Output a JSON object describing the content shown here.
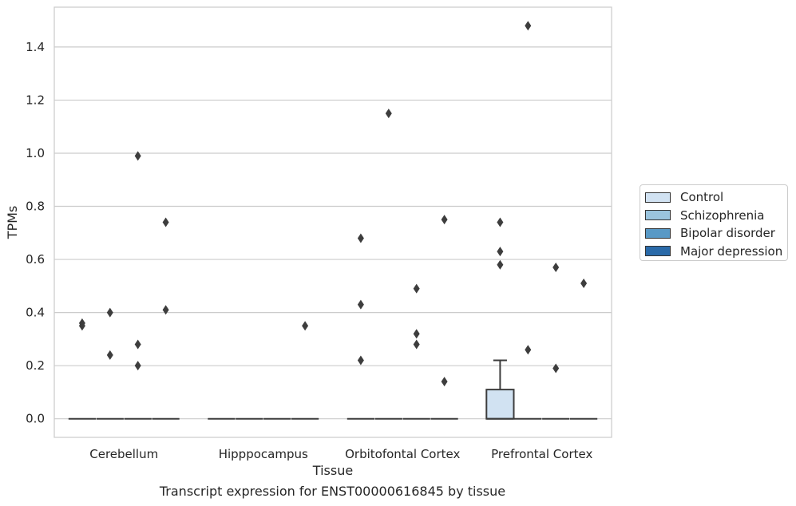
{
  "caption": "Transcript expression for ENST00000616845 by tissue",
  "chart_data": {
    "type": "boxplot",
    "xlabel": "Tissue",
    "ylabel": "TPMs",
    "ylim": [
      -0.07,
      1.55
    ],
    "yticks": [
      0.0,
      0.2,
      0.4,
      0.6,
      0.8,
      1.0,
      1.2,
      1.4
    ],
    "ytick_labels": [
      "0.0",
      "0.2",
      "0.4",
      "0.6",
      "0.8",
      "1.0",
      "1.2",
      "1.4"
    ],
    "grid": true,
    "legend_position": "right",
    "categories": [
      "Cerebellum",
      "Hipppocampus",
      "Orbitofontal Cortex",
      "Prefrontal Cortex"
    ],
    "series": [
      {
        "name": "Control",
        "color": "#d1e2f2",
        "boxes": [
          {
            "q1": 0,
            "median": 0,
            "q3": 0,
            "whisker_low": 0,
            "whisker_high": 0,
            "outliers": [
              0.36,
              0.35
            ]
          },
          {
            "q1": 0,
            "median": 0,
            "q3": 0,
            "whisker_low": 0,
            "whisker_high": 0,
            "outliers": []
          },
          {
            "q1": 0,
            "median": 0,
            "q3": 0,
            "whisker_low": 0,
            "whisker_high": 0,
            "outliers": [
              0.68,
              0.43,
              0.22
            ]
          },
          {
            "q1": 0,
            "median": 0,
            "q3": 0.11,
            "whisker_low": 0,
            "whisker_high": 0.22,
            "outliers": [
              0.74,
              0.63,
              0.58
            ]
          }
        ]
      },
      {
        "name": "Schizophrenia",
        "color": "#9ac4de",
        "boxes": [
          {
            "q1": 0,
            "median": 0,
            "q3": 0,
            "whisker_low": 0,
            "whisker_high": 0,
            "outliers": [
              0.4,
              0.24
            ]
          },
          {
            "q1": 0,
            "median": 0,
            "q3": 0,
            "whisker_low": 0,
            "whisker_high": 0,
            "outliers": []
          },
          {
            "q1": 0,
            "median": 0,
            "q3": 0,
            "whisker_low": 0,
            "whisker_high": 0,
            "outliers": [
              1.15
            ]
          },
          {
            "q1": 0,
            "median": 0,
            "q3": 0,
            "whisker_low": 0,
            "whisker_high": 0,
            "outliers": [
              1.48,
              0.26
            ]
          }
        ]
      },
      {
        "name": "Bipolar disorder",
        "color": "#5899c6",
        "boxes": [
          {
            "q1": 0,
            "median": 0,
            "q3": 0,
            "whisker_low": 0,
            "whisker_high": 0,
            "outliers": [
              0.99,
              0.28,
              0.2
            ]
          },
          {
            "q1": 0,
            "median": 0,
            "q3": 0,
            "whisker_low": 0,
            "whisker_high": 0,
            "outliers": []
          },
          {
            "q1": 0,
            "median": 0,
            "q3": 0,
            "whisker_low": 0,
            "whisker_high": 0,
            "outliers": [
              0.49,
              0.32,
              0.28
            ]
          },
          {
            "q1": 0,
            "median": 0,
            "q3": 0,
            "whisker_low": 0,
            "whisker_high": 0,
            "outliers": [
              0.57,
              0.19
            ]
          }
        ]
      },
      {
        "name": "Major depression",
        "color": "#2a6aa9",
        "boxes": [
          {
            "q1": 0,
            "median": 0,
            "q3": 0,
            "whisker_low": 0,
            "whisker_high": 0,
            "outliers": [
              0.74,
              0.41
            ]
          },
          {
            "q1": 0,
            "median": 0,
            "q3": 0,
            "whisker_low": 0,
            "whisker_high": 0,
            "outliers": [
              0.35
            ]
          },
          {
            "q1": 0,
            "median": 0,
            "q3": 0,
            "whisker_low": 0,
            "whisker_high": 0,
            "outliers": [
              0.75,
              0.14
            ]
          },
          {
            "q1": 0,
            "median": 0,
            "q3": 0,
            "whisker_low": 0,
            "whisker_high": 0,
            "outliers": [
              0.51
            ]
          }
        ]
      }
    ]
  }
}
